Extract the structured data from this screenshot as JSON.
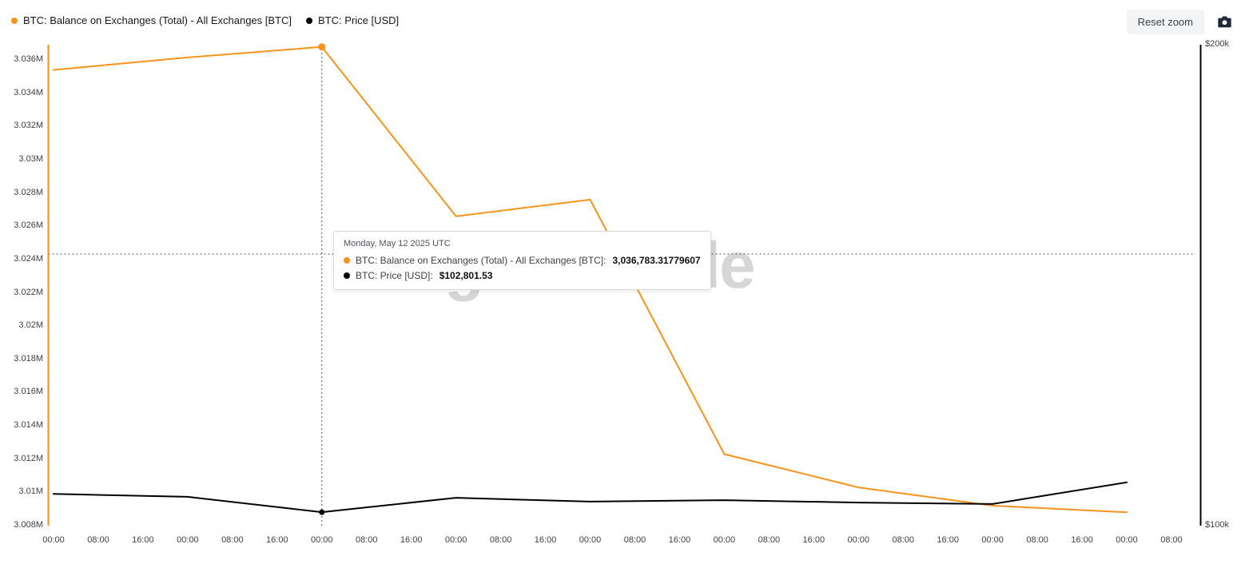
{
  "legend": {
    "items": [
      {
        "label": "BTC: Balance on Exchanges (Total) - All Exchanges [BTC]",
        "color": "#f7931a"
      },
      {
        "label": "BTC: Price [USD]",
        "color": "#000000"
      }
    ]
  },
  "toolbar": {
    "reset_zoom_label": "Reset zoom"
  },
  "watermark": "glassnode",
  "tooltip": {
    "date": "Monday, May 12 2025 UTC",
    "rows": [
      {
        "color": "#f7931a",
        "label": "BTC: Balance on Exchanges (Total) - All Exchanges [BTC]:",
        "value": "3,036,783.31779607"
      },
      {
        "color": "#000000",
        "label": "BTC: Price [USD]:",
        "value": "$102,801.53"
      }
    ]
  },
  "chart_data": {
    "type": "line",
    "grid": false,
    "legend_position": "top-left",
    "x_tick_labels": [
      "00:00",
      "08:00",
      "16:00",
      "00:00",
      "08:00",
      "16:00",
      "00:00",
      "08:00",
      "16:00",
      "00:00",
      "08:00",
      "16:00",
      "00:00",
      "08:00",
      "16:00",
      "00:00",
      "08:00",
      "16:00",
      "00:00",
      "08:00",
      "16:00",
      "00:00",
      "08:00",
      "16:00",
      "00:00",
      "08:00"
    ],
    "left_axis": {
      "tick_labels": [
        "3.036M",
        "3.034M",
        "3.032M",
        "3.03M",
        "3.028M",
        "3.026M",
        "3.024M",
        "3.022M",
        "3.02M",
        "3.018M",
        "3.016M",
        "3.014M",
        "3.012M",
        "3.01M",
        "3.008M"
      ],
      "top_value": 3036000,
      "bottom_value": 3008000,
      "color": "#f7931a"
    },
    "right_axis": {
      "tick_labels": [
        "$200k",
        "$100k"
      ],
      "top_value": 200000,
      "bottom_value": 100000,
      "color": "#000000"
    },
    "series": [
      {
        "name": "BTC: Balance on Exchanges (Total) - All Exchanges [BTC]",
        "axis": "left",
        "color": "#f7931a",
        "x_ticks": [
          0,
          3,
          6,
          9,
          12,
          15,
          18,
          21,
          24
        ],
        "values": [
          3035400,
          3036150,
          3036783.31779607,
          3026600,
          3027600,
          3012300,
          3010300,
          3009200,
          3008800
        ]
      },
      {
        "name": "BTC: Price [USD]",
        "axis": "right",
        "color": "#000000",
        "x_ticks": [
          0,
          3,
          6,
          9,
          12,
          15,
          18,
          21,
          24
        ],
        "values": [
          106600,
          106000,
          102801.53,
          105800,
          105000,
          105300,
          104800,
          104500,
          109000
        ]
      }
    ],
    "hover": {
      "x_tick": 6,
      "balance_value": 3036783.31779607,
      "price_value": 102801.53
    }
  }
}
